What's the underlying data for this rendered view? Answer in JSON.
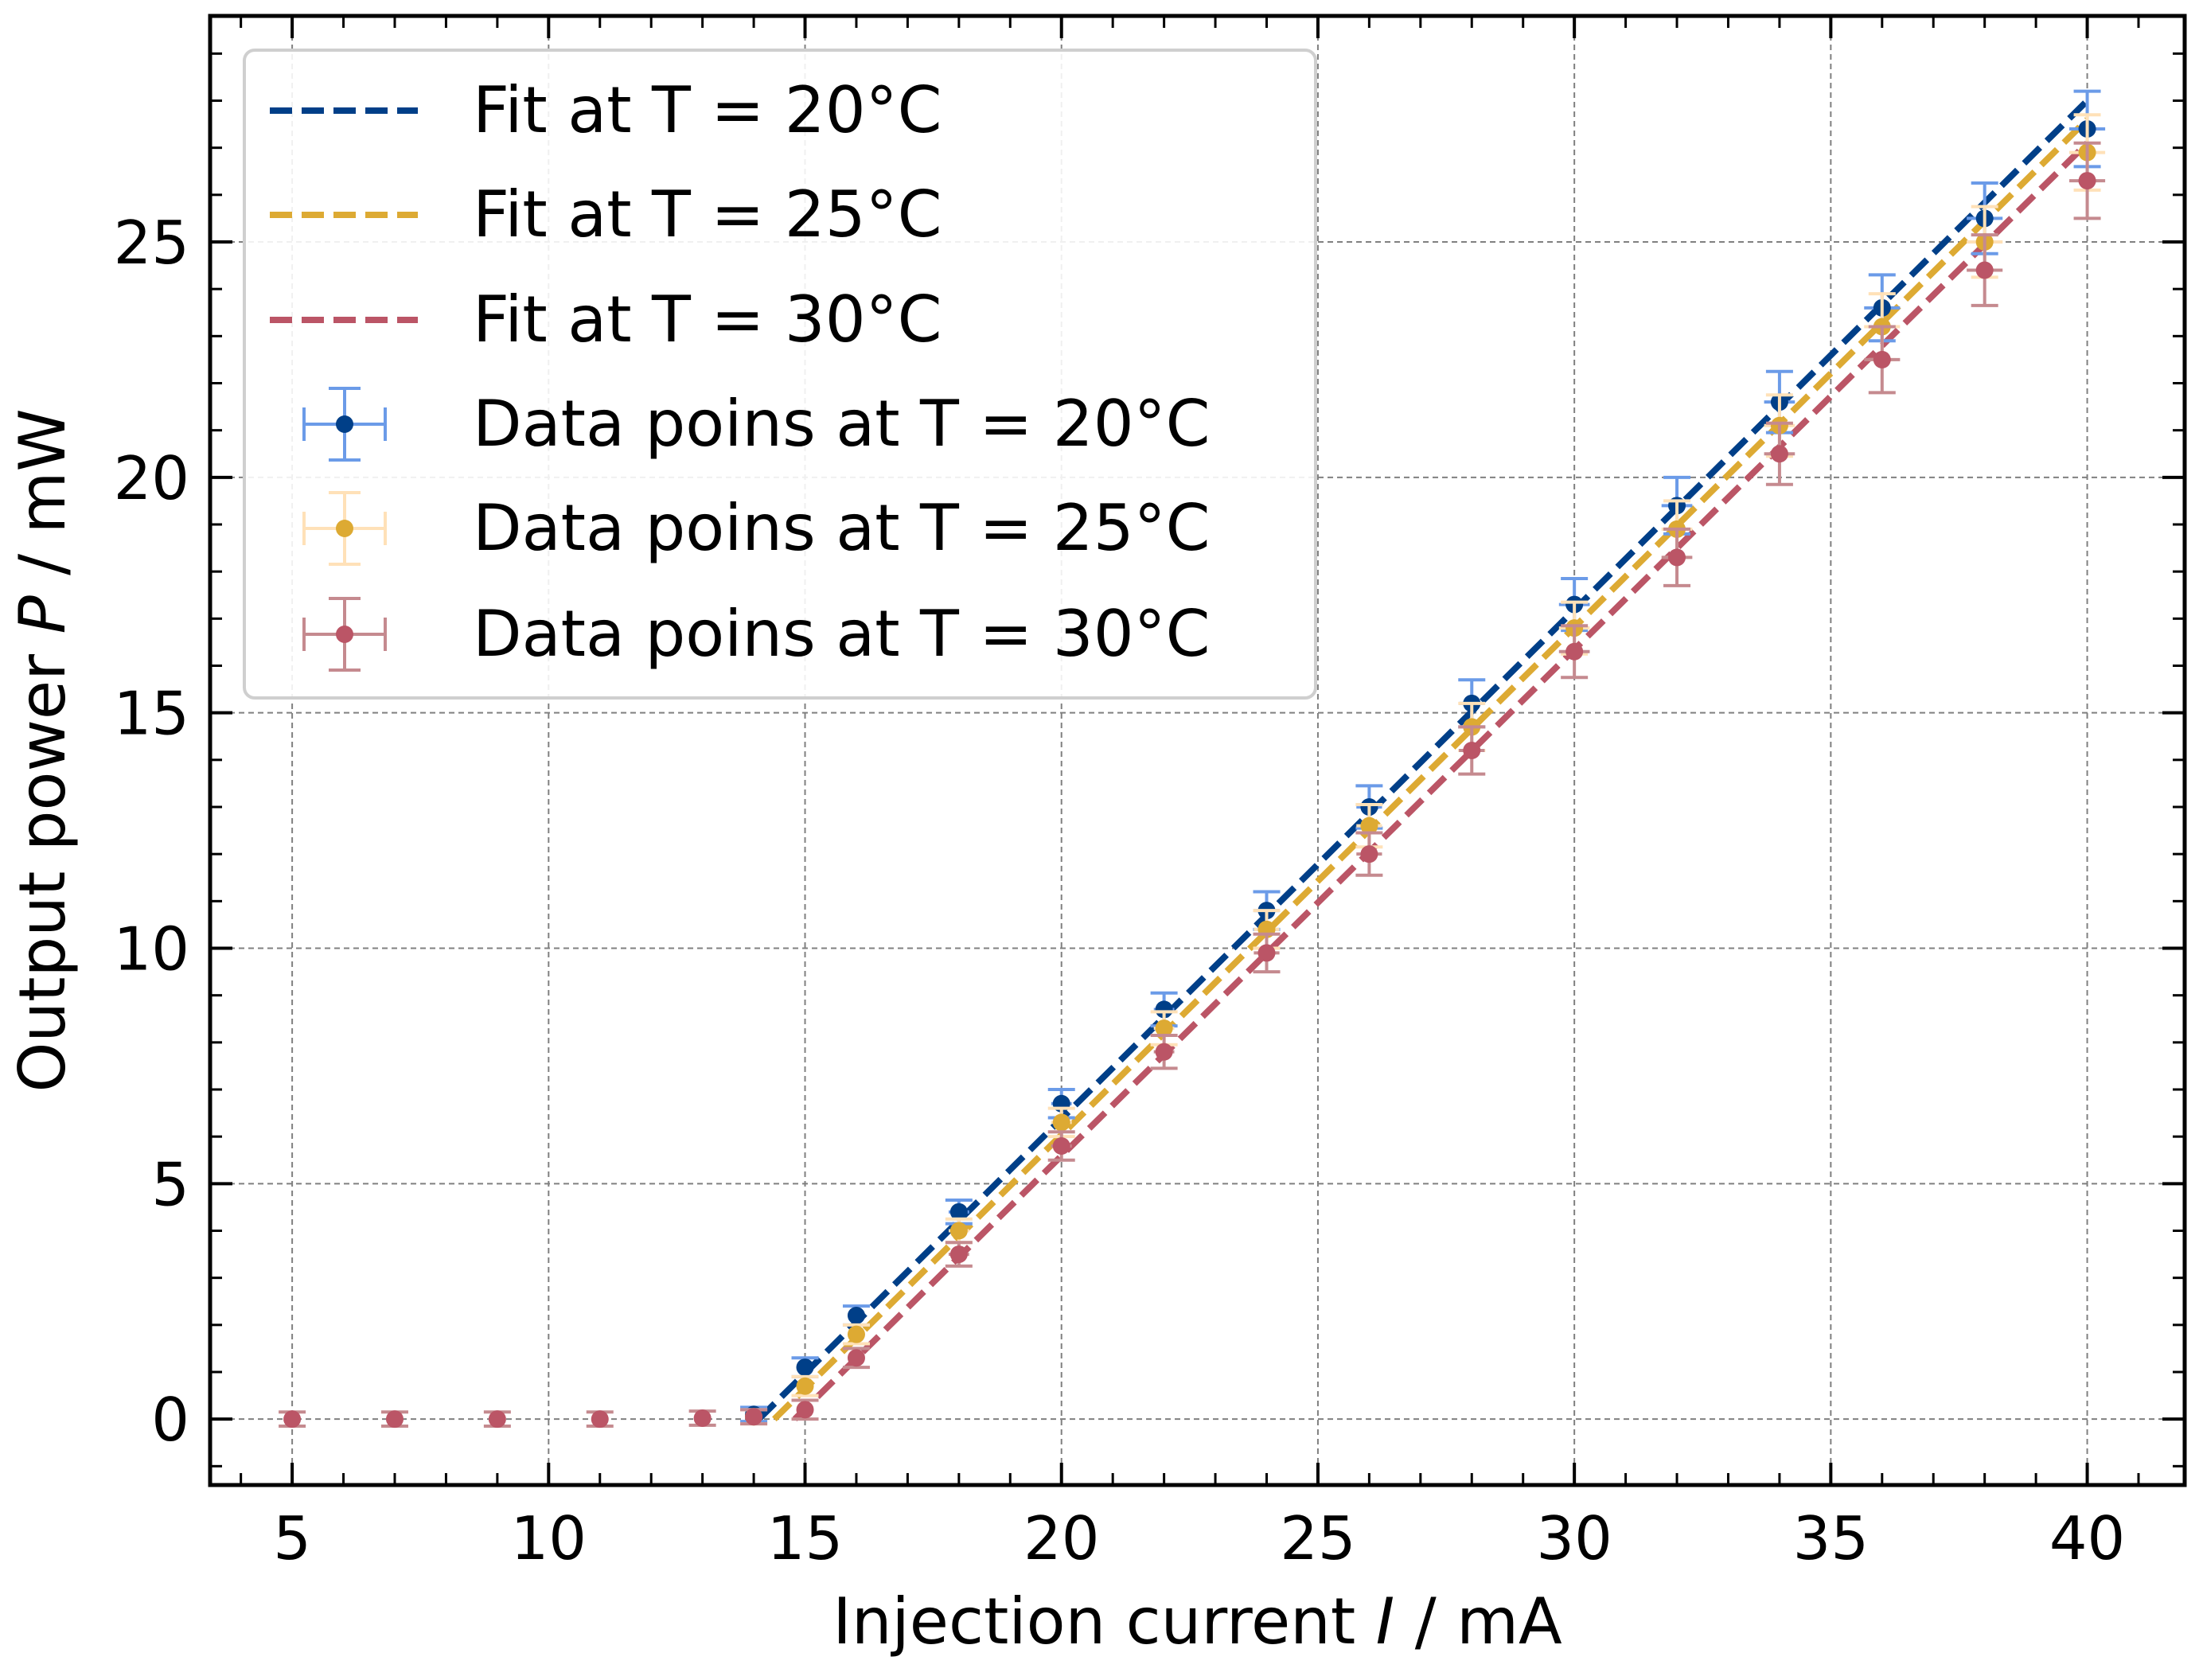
{
  "chart_data": {
    "type": "scatter",
    "xlabel": {
      "prefix": "Injection current ",
      "symbol": "I",
      "suffix": " / mA"
    },
    "ylabel": {
      "prefix": "Output power ",
      "symbol": "P",
      "suffix": " / mW"
    },
    "xlim": [
      3.4,
      41.9
    ],
    "ylim": [
      -1.4,
      29.8
    ],
    "x_ticks": [
      5,
      10,
      15,
      20,
      25,
      30,
      35,
      40
    ],
    "y_ticks": [
      0,
      5,
      10,
      15,
      20,
      25
    ],
    "grid": true,
    "legend_position": "top-left",
    "fits": [
      {
        "name": "Fit at T = 20°C",
        "color": "#003f88",
        "x": [
          14.1,
          40.0
        ],
        "y": [
          0.0,
          28.0
        ]
      },
      {
        "name": "Fit at T = 25°C",
        "color": "#ddaa33",
        "x": [
          14.4,
          40.0
        ],
        "y": [
          0.0,
          27.6
        ]
      },
      {
        "name": "Fit at T = 30°C",
        "color": "#bb5566",
        "x": [
          14.8,
          40.0
        ],
        "y": [
          0.0,
          27.1
        ]
      }
    ],
    "series": [
      {
        "name": "Data poins at T = 20°C",
        "marker_color": "#003f88",
        "error_color": "#6b9be8",
        "x": [
          14,
          15,
          16,
          18,
          20,
          22,
          24,
          26,
          28,
          30,
          32,
          34,
          36,
          38,
          40
        ],
        "y": [
          0.1,
          1.1,
          2.2,
          4.4,
          6.7,
          8.7,
          10.8,
          13.0,
          15.2,
          17.3,
          19.4,
          21.6,
          23.6,
          25.5,
          27.4
        ],
        "yerr": [
          0.15,
          0.2,
          0.2,
          0.25,
          0.3,
          0.35,
          0.4,
          0.45,
          0.5,
          0.55,
          0.6,
          0.65,
          0.7,
          0.75,
          0.8
        ],
        "xerr": [
          0.15,
          0.15,
          0.15,
          0.2,
          0.2,
          0.2,
          0.25,
          0.25,
          0.25,
          0.3,
          0.3,
          0.3,
          0.35,
          0.35,
          0.35
        ]
      },
      {
        "name": "Data poins at T = 25°C",
        "marker_color": "#ddaa33",
        "error_color": "#ffe1b8",
        "x": [
          14,
          15,
          16,
          18,
          20,
          22,
          24,
          26,
          28,
          30,
          32,
          34,
          36,
          38,
          40
        ],
        "y": [
          0.05,
          0.7,
          1.8,
          4.0,
          6.3,
          8.3,
          10.4,
          12.6,
          14.7,
          16.8,
          18.9,
          21.1,
          23.2,
          25.0,
          26.9
        ],
        "yerr": [
          0.15,
          0.2,
          0.2,
          0.25,
          0.3,
          0.35,
          0.4,
          0.45,
          0.5,
          0.55,
          0.6,
          0.65,
          0.7,
          0.75,
          0.8
        ],
        "xerr": [
          0.15,
          0.15,
          0.15,
          0.2,
          0.2,
          0.2,
          0.25,
          0.25,
          0.25,
          0.3,
          0.3,
          0.3,
          0.35,
          0.35,
          0.35
        ]
      },
      {
        "name": "Data poins at T = 30°C",
        "marker_color": "#bb5566",
        "error_color": "#c58a8f",
        "x": [
          5,
          7,
          9,
          11,
          13,
          14,
          15,
          16,
          18,
          20,
          22,
          24,
          26,
          28,
          30,
          32,
          34,
          36,
          38,
          40
        ],
        "y": [
          0.0,
          0.0,
          0.0,
          0.0,
          0.02,
          0.05,
          0.2,
          1.3,
          3.5,
          5.8,
          7.8,
          9.9,
          12.0,
          14.2,
          16.3,
          18.3,
          20.5,
          22.5,
          24.4,
          26.3
        ],
        "yerr": [
          0.15,
          0.15,
          0.15,
          0.15,
          0.15,
          0.15,
          0.2,
          0.2,
          0.25,
          0.3,
          0.35,
          0.4,
          0.45,
          0.5,
          0.55,
          0.6,
          0.65,
          0.7,
          0.75,
          0.8
        ],
        "xerr": [
          0.1,
          0.1,
          0.1,
          0.1,
          0.1,
          0.15,
          0.15,
          0.15,
          0.2,
          0.2,
          0.2,
          0.25,
          0.25,
          0.25,
          0.3,
          0.3,
          0.3,
          0.35,
          0.35,
          0.35
        ]
      }
    ]
  }
}
